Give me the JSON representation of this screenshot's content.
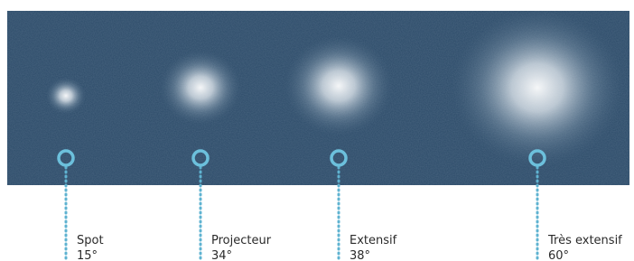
{
  "items": [
    {
      "label": "Spot",
      "angle": "15°"
    },
    {
      "label": "Projecteur",
      "angle": "34°"
    },
    {
      "label": "Extensif",
      "angle": "38°"
    },
    {
      "label": "Très extensif",
      "angle": "60°"
    }
  ]
}
